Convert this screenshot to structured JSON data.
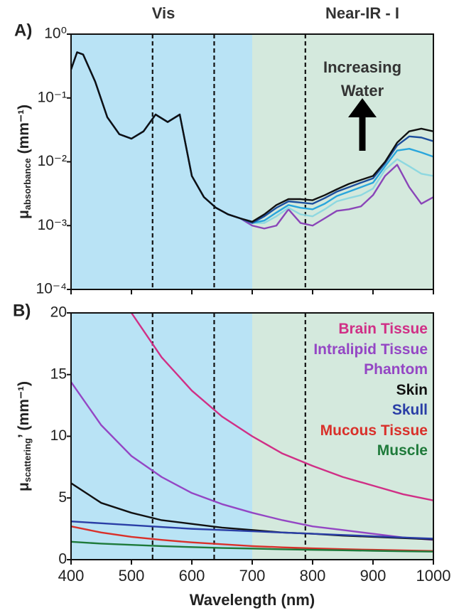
{
  "chart_data": [
    {
      "type": "line",
      "panel": "A)",
      "log_y": true,
      "ylabel": "μ",
      "ylabel_sub": "absorbance",
      "ylabel_unit": " (mm⁻¹)",
      "region_labels": [
        "Vis",
        "Near-IR - I"
      ],
      "annotation": "Increasing Water",
      "xlim": [
        400,
        1000
      ],
      "xticks": [
        400,
        500,
        600,
        700,
        800,
        900,
        1000
      ],
      "ylim": [
        0.0001,
        1
      ],
      "yticks": [
        {
          "value": 1,
          "label": "10⁰"
        },
        {
          "value": 0.1,
          "label": "10⁻¹"
        },
        {
          "value": 0.01,
          "label": "10⁻²"
        },
        {
          "value": 0.001,
          "label": "10⁻³"
        },
        {
          "value": 0.0001,
          "label": "10⁻⁴"
        }
      ],
      "shading": [
        {
          "xlim": [
            400,
            700
          ],
          "color": "#b9e3f5"
        },
        {
          "xlim": [
            700,
            1000
          ],
          "color": "#d4e9dd"
        }
      ],
      "vlines": [
        535,
        637,
        788
      ],
      "x": [
        400,
        410,
        420,
        440,
        460,
        480,
        500,
        520,
        540,
        560,
        580,
        600,
        620,
        640,
        660,
        680,
        700,
        720,
        740,
        760,
        780,
        800,
        820,
        840,
        860,
        880,
        900,
        920,
        940,
        960,
        980,
        1000
      ],
      "series": [
        {
          "color": "#8a45b8",
          "values": [
            0.28,
            0.52,
            0.48,
            0.18,
            0.05,
            0.027,
            0.023,
            0.03,
            0.055,
            0.042,
            0.055,
            0.006,
            0.0028,
            0.0019,
            0.0015,
            0.0013,
            0.001,
            0.0009,
            0.001,
            0.0018,
            0.0011,
            0.001,
            0.0013,
            0.0017,
            0.0018,
            0.002,
            0.003,
            0.006,
            0.009,
            0.004,
            0.0022,
            0.0028
          ]
        },
        {
          "color": "#8ed8e0",
          "values": [
            0.28,
            0.52,
            0.48,
            0.18,
            0.05,
            0.027,
            0.023,
            0.03,
            0.055,
            0.042,
            0.055,
            0.006,
            0.0028,
            0.0019,
            0.0015,
            0.0013,
            0.0011,
            0.0011,
            0.0014,
            0.0019,
            0.0015,
            0.0014,
            0.0018,
            0.0024,
            0.0027,
            0.003,
            0.0038,
            0.0075,
            0.011,
            0.0085,
            0.0065,
            0.006
          ]
        },
        {
          "color": "#29a6dc",
          "values": [
            0.28,
            0.52,
            0.48,
            0.18,
            0.05,
            0.027,
            0.023,
            0.03,
            0.055,
            0.042,
            0.055,
            0.006,
            0.0028,
            0.0019,
            0.0015,
            0.0013,
            0.0011,
            0.0012,
            0.0016,
            0.0021,
            0.0019,
            0.0018,
            0.0022,
            0.0029,
            0.0034,
            0.004,
            0.0047,
            0.0085,
            0.015,
            0.016,
            0.014,
            0.012
          ]
        },
        {
          "color": "#1d4f9e",
          "values": [
            0.28,
            0.52,
            0.48,
            0.18,
            0.05,
            0.027,
            0.023,
            0.03,
            0.055,
            0.042,
            0.055,
            0.006,
            0.0028,
            0.0019,
            0.0015,
            0.0013,
            0.0011,
            0.0014,
            0.0019,
            0.0024,
            0.0023,
            0.0022,
            0.0027,
            0.0034,
            0.004,
            0.0047,
            0.0055,
            0.0095,
            0.018,
            0.025,
            0.024,
            0.021
          ]
        },
        {
          "color": "#111111",
          "values": [
            0.28,
            0.52,
            0.48,
            0.18,
            0.05,
            0.027,
            0.023,
            0.03,
            0.055,
            0.042,
            0.055,
            0.006,
            0.0028,
            0.0019,
            0.0015,
            0.0013,
            0.00115,
            0.0015,
            0.0021,
            0.0026,
            0.0026,
            0.0025,
            0.003,
            0.0037,
            0.0045,
            0.0052,
            0.006,
            0.01,
            0.02,
            0.03,
            0.033,
            0.03
          ]
        }
      ]
    },
    {
      "type": "line",
      "panel": "B)",
      "ylabel": "μ",
      "ylabel_sub": "scattering",
      "ylabel_unit": "’ (mm⁻¹)",
      "xlabel": "Wavelength (nm)",
      "xlim": [
        400,
        1000
      ],
      "xticks": [
        400,
        500,
        600,
        700,
        800,
        900,
        1000
      ],
      "ylim": [
        0,
        20
      ],
      "yticks": [
        0,
        5,
        10,
        15,
        20
      ],
      "shading": [
        {
          "xlim": [
            400,
            700
          ],
          "color": "#b9e3f5"
        },
        {
          "xlim": [
            700,
            1000
          ],
          "color": "#d4e9dd"
        }
      ],
      "vlines": [
        535,
        637,
        788
      ],
      "x": [
        400,
        450,
        500,
        550,
        600,
        650,
        700,
        750,
        800,
        850,
        900,
        950,
        1000
      ],
      "series": [
        {
          "name": "Brain Tissue",
          "color": "#d02f86",
          "values": [
            null,
            null,
            20,
            16.4,
            13.7,
            11.6,
            10.0,
            8.6,
            7.6,
            6.7,
            6.0,
            5.3,
            4.8
          ]
        },
        {
          "name": "Intralipid Tissue Phantom",
          "color": "#9446c4",
          "values": [
            14.4,
            10.9,
            8.4,
            6.7,
            5.4,
            4.5,
            3.8,
            3.2,
            2.7,
            2.4,
            2.1,
            1.8,
            1.6
          ]
        },
        {
          "name": "Skin",
          "color": "#111111",
          "values": [
            6.2,
            4.6,
            3.8,
            3.2,
            2.9,
            2.6,
            2.4,
            2.2,
            2.1,
            1.95,
            1.85,
            1.75,
            1.65
          ]
        },
        {
          "name": "Skull",
          "color": "#2a3ea6",
          "values": [
            3.1,
            2.95,
            2.8,
            2.65,
            2.5,
            2.4,
            2.3,
            2.2,
            2.1,
            2.0,
            1.9,
            1.8,
            1.7
          ]
        },
        {
          "name": "Mucous Tissue",
          "color": "#d9302a",
          "values": [
            2.7,
            2.2,
            1.85,
            1.6,
            1.4,
            1.25,
            1.1,
            1.0,
            0.92,
            0.85,
            0.8,
            0.75,
            0.7
          ]
        },
        {
          "name": "Muscle",
          "color": "#1e7a3a",
          "values": [
            1.45,
            1.3,
            1.2,
            1.1,
            1.02,
            0.95,
            0.9,
            0.84,
            0.8,
            0.76,
            0.72,
            0.68,
            0.65
          ]
        }
      ]
    }
  ]
}
